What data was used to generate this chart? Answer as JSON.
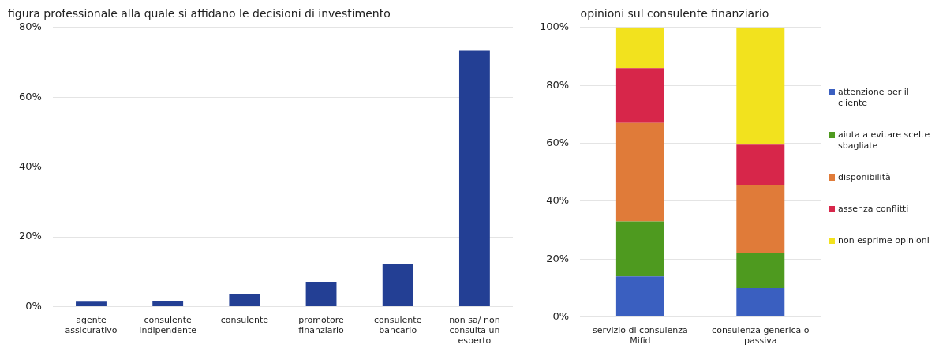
{
  "chart_data": [
    {
      "type": "bar",
      "title": "figura professionale alla quale si affidano le decisioni di investimento",
      "categories": [
        "agente assicurativo",
        "consulente indipendente",
        "consulente",
        "promotore finanziario",
        "consulente bancario",
        "non sa/ non consulta un esperto"
      ],
      "values": [
        1.4,
        1.6,
        3.7,
        7.1,
        12.1,
        73.5
      ],
      "color": "#233f94",
      "ylim": [
        0,
        80
      ],
      "yticks": [
        {
          "value": 0,
          "label": "0%"
        },
        {
          "value": 20,
          "label": "20%"
        },
        {
          "value": 40,
          "label": "40%"
        },
        {
          "value": 60,
          "label": "60%"
        },
        {
          "value": 80,
          "label": "80%"
        }
      ],
      "grid": "y"
    },
    {
      "type": "bar",
      "stacked": true,
      "title": "opinioni sul consulente finanziario",
      "categories": [
        "servizio di consulenza Mifid",
        "consulenza generica o passiva"
      ],
      "series": [
        {
          "name": "attenzione per il cliente",
          "color": "#3a5fc0",
          "values": [
            14,
            10
          ]
        },
        {
          "name": "aiuta a evitare scelte sbagliate",
          "color": "#4e9a1f",
          "values": [
            19,
            12
          ]
        },
        {
          "name": "disponibilità",
          "color": "#e07b39",
          "values": [
            34,
            23.5
          ]
        },
        {
          "name": "assenza conflitti",
          "color": "#d7264a",
          "values": [
            19,
            14
          ]
        },
        {
          "name": "non esprime opinioni",
          "color": "#f2e21e",
          "values": [
            14,
            40.5
          ]
        }
      ],
      "ylim": [
        0,
        100
      ],
      "yticks": [
        {
          "value": 0,
          "label": "0%"
        },
        {
          "value": 20,
          "label": "20%"
        },
        {
          "value": 40,
          "label": "40%"
        },
        {
          "value": 60,
          "label": "60%"
        },
        {
          "value": 80,
          "label": "80%"
        },
        {
          "value": 100,
          "label": "100%"
        }
      ],
      "grid": "y",
      "legend": "right"
    }
  ]
}
